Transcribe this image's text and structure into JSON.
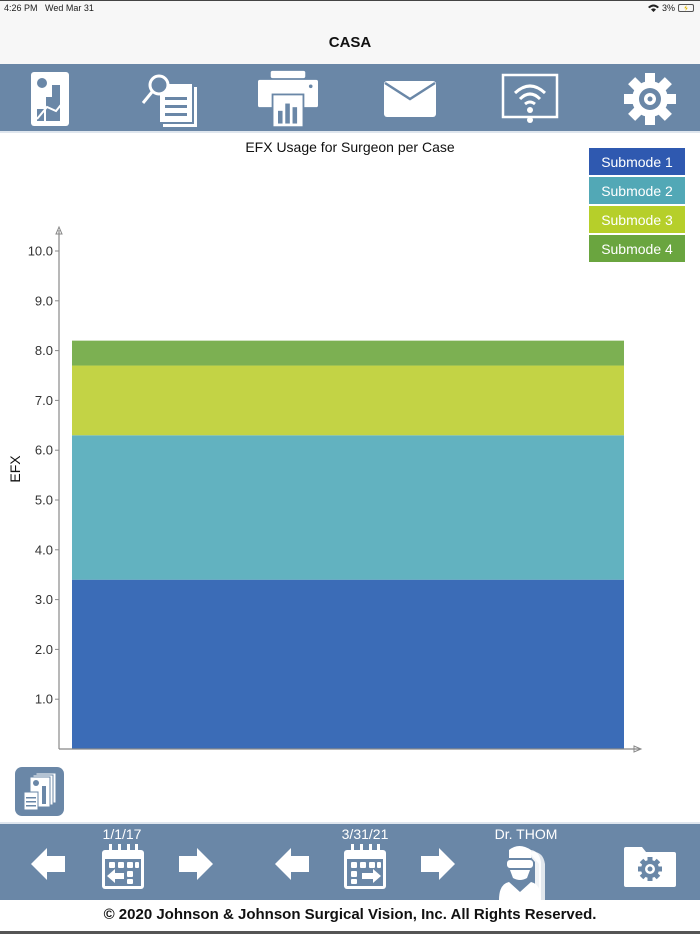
{
  "status_bar": {
    "time": "4:26 PM",
    "date": "Wed Mar 31",
    "battery": "3%"
  },
  "app": {
    "title": "CASA"
  },
  "toolbar": {
    "icons": [
      "report-chart-icon",
      "search-documents-icon",
      "print-icon",
      "mail-icon",
      "wireless-display-icon",
      "gear-icon"
    ]
  },
  "bottom_bar": {
    "start_date": "1/1/17",
    "end_date": "3/31/21",
    "surgeon": "Dr. THOM"
  },
  "footer": {
    "copyright": "© 2020 Johnson & Johnson Surgical Vision, Inc.  All Rights Reserved."
  },
  "chart_data": {
    "type": "bar",
    "stacked": true,
    "title": "EFX Usage for Surgeon per Case",
    "xlabel": "",
    "ylabel": "EFX",
    "ylim": [
      0,
      10.4
    ],
    "yticks": [
      "1.0",
      "2.0",
      "3.0",
      "4.0",
      "5.0",
      "6.0",
      "7.0",
      "8.0",
      "9.0",
      "10.0"
    ],
    "categories": [
      ""
    ],
    "legend_position": "top-right",
    "grid": false,
    "series": [
      {
        "name": "Submode 1",
        "values": [
          3.4
        ],
        "color": "#3b6cb7",
        "legend_color": "#2f59b0"
      },
      {
        "name": "Submode 2",
        "values": [
          2.9
        ],
        "color": "#62b2c0",
        "legend_color": "#52a8b6"
      },
      {
        "name": "Submode 3",
        "values": [
          1.4
        ],
        "color": "#c3d345",
        "legend_color": "#b6cf2a"
      },
      {
        "name": "Submode 4",
        "values": [
          0.5
        ],
        "color": "#7cb052",
        "legend_color": "#6aa53f"
      }
    ]
  }
}
